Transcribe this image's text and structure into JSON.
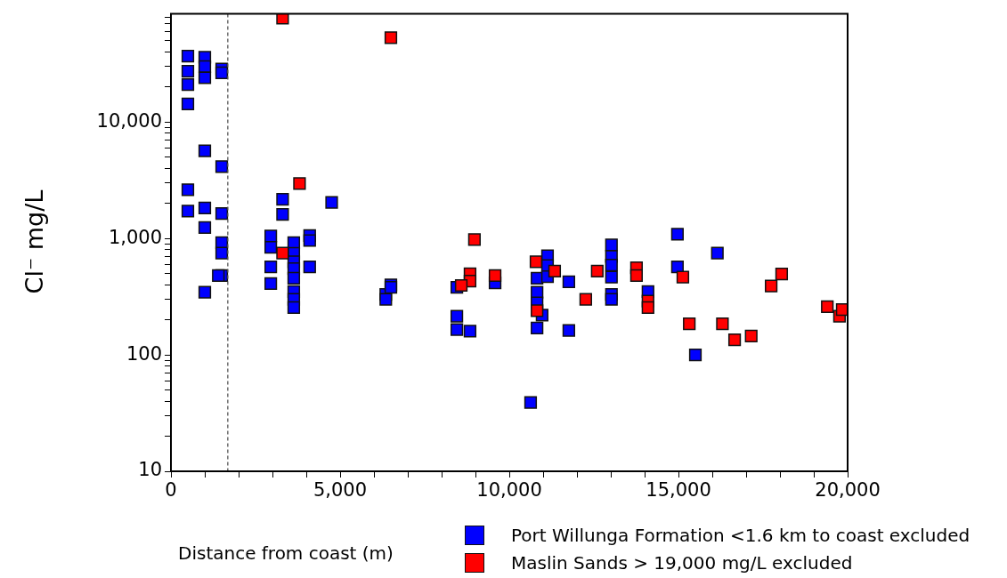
{
  "chart_data": {
    "type": "scatter",
    "xlabel": "Distance from coast (m)",
    "ylabel": "Cl⁻ mg/L",
    "log": "y",
    "grid": false,
    "legend": "bottom right",
    "marker": "square",
    "xlim": [
      0,
      20000
    ],
    "ylim": [
      10,
      85000
    ],
    "xticks": [
      {
        "value": 0,
        "label": "0"
      },
      {
        "value": 1000,
        "label": null
      },
      {
        "value": 2000,
        "label": null
      },
      {
        "value": 3000,
        "label": null
      },
      {
        "value": 4000,
        "label": null
      },
      {
        "value": 5000,
        "label": "5,000"
      },
      {
        "value": 6000,
        "label": null
      },
      {
        "value": 7000,
        "label": null
      },
      {
        "value": 8000,
        "label": null
      },
      {
        "value": 9000,
        "label": null
      },
      {
        "value": 10000,
        "label": "10,000"
      },
      {
        "value": 11000,
        "label": null
      },
      {
        "value": 12000,
        "label": null
      },
      {
        "value": 13000,
        "label": null
      },
      {
        "value": 14000,
        "label": null
      },
      {
        "value": 15000,
        "label": "15,000"
      },
      {
        "value": 16000,
        "label": null
      },
      {
        "value": 17000,
        "label": null
      },
      {
        "value": 18000,
        "label": null
      },
      {
        "value": 19000,
        "label": null
      },
      {
        "value": 20000,
        "label": "20,000"
      }
    ],
    "yticks": [
      {
        "value": 10,
        "label": "10"
      },
      {
        "value": 20,
        "label": null
      },
      {
        "value": 30,
        "label": null
      },
      {
        "value": 40,
        "label": null
      },
      {
        "value": 50,
        "label": null
      },
      {
        "value": 60,
        "label": null
      },
      {
        "value": 70,
        "label": null
      },
      {
        "value": 80,
        "label": null
      },
      {
        "value": 90,
        "label": null
      },
      {
        "value": 100,
        "label": "100"
      },
      {
        "value": 200,
        "label": null
      },
      {
        "value": 300,
        "label": null
      },
      {
        "value": 400,
        "label": null
      },
      {
        "value": 500,
        "label": null
      },
      {
        "value": 600,
        "label": null
      },
      {
        "value": 700,
        "label": null
      },
      {
        "value": 800,
        "label": null
      },
      {
        "value": 900,
        "label": null
      },
      {
        "value": 1000,
        "label": "1,000"
      },
      {
        "value": 2000,
        "label": null
      },
      {
        "value": 3000,
        "label": null
      },
      {
        "value": 4000,
        "label": null
      },
      {
        "value": 5000,
        "label": null
      },
      {
        "value": 6000,
        "label": null
      },
      {
        "value": 7000,
        "label": null
      },
      {
        "value": 8000,
        "label": null
      },
      {
        "value": 9000,
        "label": null
      },
      {
        "value": 10000,
        "label": "10,000"
      },
      {
        "value": 20000,
        "label": null
      },
      {
        "value": 30000,
        "label": null
      },
      {
        "value": 40000,
        "label": null
      },
      {
        "value": 50000,
        "label": null
      },
      {
        "value": 60000,
        "label": null
      },
      {
        "value": 70000,
        "label": null
      },
      {
        "value": 80000,
        "label": null
      }
    ],
    "ref_lines": [
      {
        "axis": "x",
        "value": 1680,
        "color": "#555555",
        "line_style": "dashed"
      }
    ],
    "series": [
      {
        "name": "Port Willunga Formation <1.6 km to coast excluded",
        "color": "#0000ff",
        "x": [
          500,
          500,
          500,
          500,
          500,
          500,
          1000,
          1000,
          1000,
          1000,
          1000,
          1000,
          1000,
          1500,
          1500,
          1500,
          1500,
          1500,
          1500,
          1500,
          1400,
          2950,
          2950,
          2950,
          2950,
          3300,
          3300,
          3630,
          3630,
          3630,
          3630,
          3630,
          3630,
          3630,
          3630,
          4100,
          4100,
          4100,
          4750,
          6350,
          6350,
          6500,
          6500,
          8450,
          8450,
          8450,
          8840,
          9580,
          10630,
          10820,
          10820,
          10820,
          10820,
          10970,
          11130,
          11130,
          11130,
          11760,
          11760,
          13020,
          13020,
          13020,
          13020,
          13020,
          13020,
          14100,
          14970,
          14970,
          16150,
          15500
        ],
        "values": [
          36900,
          27300,
          21000,
          14300,
          2620,
          1720,
          36000,
          30000,
          24000,
          5660,
          1830,
          1240,
          345,
          28600,
          26500,
          4150,
          1640,
          920,
          750,
          480,
          480,
          1050,
          840,
          570,
          410,
          2170,
          1610,
          920,
          745,
          630,
          550,
          455,
          350,
          300,
          255,
          1060,
          960,
          570,
          2040,
          330,
          300,
          400,
          380,
          380,
          215,
          165,
          160,
          415,
          39,
          455,
          345,
          280,
          170,
          220,
          710,
          585,
          470,
          425,
          162,
          880,
          700,
          590,
          465,
          330,
          300,
          350,
          1090,
          570,
          750,
          100
        ]
      },
      {
        "name": "Maslin Sands > 19,000 mg/L excluded",
        "color": "#ff0000",
        "x": [
          3300,
          3300,
          3800,
          6500,
          8970,
          8840,
          8840,
          8580,
          9580,
          10820,
          10790,
          11340,
          12260,
          12600,
          13760,
          13760,
          14100,
          14100,
          15130,
          15320,
          16300,
          16660,
          17150,
          17740,
          18050,
          19400,
          19760,
          19840
        ],
        "values": [
          78000,
          750,
          2960,
          53000,
          980,
          497,
          430,
          395,
          480,
          240,
          630,
          525,
          300,
          525,
          560,
          480,
          290,
          255,
          465,
          185,
          185,
          135,
          145,
          390,
          495,
          260,
          215,
          245
        ]
      }
    ]
  }
}
